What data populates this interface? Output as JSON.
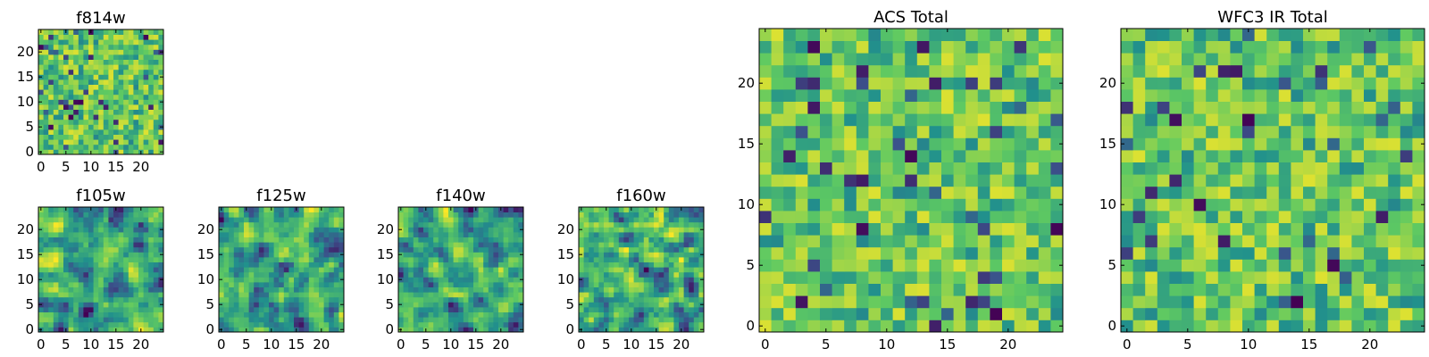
{
  "figure": {
    "description_colormap": "viridis",
    "colormap_stops": [
      "#440154",
      "#3b528b",
      "#21918c",
      "#5ec962",
      "#fde725"
    ]
  },
  "chart_data": [
    {
      "type": "heatmap",
      "title": "f814w",
      "grid_size": 25,
      "xticks": [
        0,
        5,
        10,
        15,
        20
      ],
      "yticks": [
        0,
        5,
        10,
        15,
        20
      ],
      "xlim": [
        -0.5,
        24.5
      ],
      "ylim": [
        -0.5,
        24.5
      ],
      "value_range": [
        0,
        1
      ],
      "seed": 11,
      "smooth": 0
    },
    {
      "type": "heatmap",
      "title": "f105w",
      "grid_size": 25,
      "xticks": [
        0,
        5,
        10,
        15,
        20
      ],
      "yticks": [
        0,
        5,
        10,
        15,
        20
      ],
      "xlim": [
        -0.5,
        24.5
      ],
      "ylim": [
        -0.5,
        24.5
      ],
      "value_range": [
        0,
        1
      ],
      "seed": 23,
      "smooth": 1
    },
    {
      "type": "heatmap",
      "title": "f125w",
      "grid_size": 25,
      "xticks": [
        0,
        5,
        10,
        15,
        20
      ],
      "yticks": [
        0,
        5,
        10,
        15,
        20
      ],
      "xlim": [
        -0.5,
        24.5
      ],
      "ylim": [
        -0.5,
        24.5
      ],
      "value_range": [
        0,
        1
      ],
      "seed": 37,
      "smooth": 1
    },
    {
      "type": "heatmap",
      "title": "f140w",
      "grid_size": 25,
      "xticks": [
        0,
        5,
        10,
        15,
        20
      ],
      "yticks": [
        0,
        5,
        10,
        15,
        20
      ],
      "xlim": [
        -0.5,
        24.5
      ],
      "ylim": [
        -0.5,
        24.5
      ],
      "value_range": [
        0,
        1
      ],
      "seed": 41,
      "smooth": 1
    },
    {
      "type": "heatmap",
      "title": "f160w",
      "grid_size": 25,
      "xticks": [
        0,
        5,
        10,
        15,
        20
      ],
      "yticks": [
        0,
        5,
        10,
        15,
        20
      ],
      "xlim": [
        -0.5,
        24.5
      ],
      "ylim": [
        -0.5,
        24.5
      ],
      "value_range": [
        0,
        1
      ],
      "seed": 53,
      "smooth": 1
    },
    {
      "type": "heatmap",
      "title": "ACS Total",
      "grid_size": 25,
      "xticks": [
        0,
        5,
        10,
        15,
        20
      ],
      "yticks": [
        0,
        5,
        10,
        15,
        20
      ],
      "xlim": [
        -0.5,
        24.5
      ],
      "ylim": [
        -0.5,
        24.5
      ],
      "value_range": [
        0,
        1
      ],
      "seed": 67,
      "smooth": 0
    },
    {
      "type": "heatmap",
      "title": "WFC3 IR Total",
      "grid_size": 25,
      "xticks": [
        0,
        5,
        10,
        15,
        20
      ],
      "yticks": [
        0,
        5,
        10,
        15,
        20
      ],
      "xlim": [
        -0.5,
        24.5
      ],
      "ylim": [
        -0.5,
        24.5
      ],
      "value_range": [
        0,
        1
      ],
      "seed": 79,
      "smooth": 0
    }
  ]
}
